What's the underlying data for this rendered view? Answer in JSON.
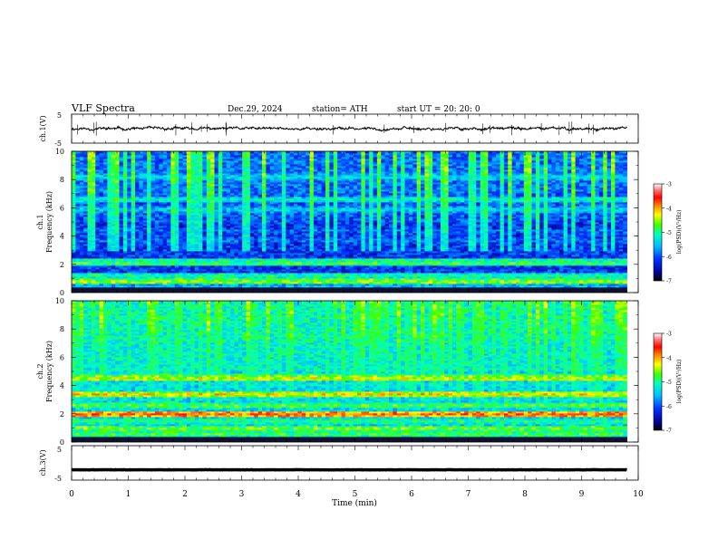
{
  "header": {
    "title": "VLF  Spectra",
    "date": "Dec.29, 2024",
    "station": "station= ATH",
    "start": "start  UT  =   20: 20: 0"
  },
  "chart_data": [
    {
      "type": "line",
      "ylabel": "ch.1(V)",
      "ylim": [
        -5,
        5
      ],
      "ytick_labels": [
        "5",
        "-5"
      ],
      "trace_level": 0,
      "trace_amplitude": 0.5
    },
    {
      "type": "heatmap",
      "ylabel": "ch.1",
      "ylabel2": "Frequency  (kHz)",
      "ylim": [
        0,
        10
      ],
      "ytick_labels": [
        "0",
        "2",
        "4",
        "6",
        "8",
        "10"
      ],
      "colorbar": {
        "label": "log(PSD)(V²/Hz)",
        "range": [
          -7,
          -3
        ],
        "tick_labels": [
          "-3",
          "-4",
          "-5",
          "-6",
          "-7"
        ]
      },
      "bands_khz": [
        {
          "f": 0.5,
          "level": -5.5
        },
        {
          "f": 0.8,
          "level": -4.5
        },
        {
          "f": 1.2,
          "level": -5.0
        },
        {
          "f": 2.1,
          "level": -4.8
        },
        {
          "f": 2.3,
          "level": -5.0
        },
        {
          "f": 3.7,
          "level": -5.9
        },
        {
          "f": 4.4,
          "level": -5.9
        },
        {
          "f": 5.9,
          "level": -5.4
        },
        {
          "f": 6.6,
          "level": -5.2
        },
        {
          "f": 8.2,
          "level": -5.3
        }
      ],
      "background_level": -6.2
    },
    {
      "type": "heatmap",
      "ylabel": "ch.2",
      "ylabel2": "Frequency  (kHz)",
      "ylim": [
        0,
        10
      ],
      "ytick_labels": [
        "0",
        "2",
        "4",
        "6",
        "8",
        "10"
      ],
      "colorbar": {
        "label": "log(PSD)(V²/Hz)",
        "range": [
          -7,
          -3
        ],
        "tick_labels": [
          "-3",
          "-4",
          "-5",
          "-6",
          "-7"
        ]
      },
      "bands_khz": [
        {
          "f": 0.6,
          "level": -4.8
        },
        {
          "f": 1.0,
          "level": -4.6
        },
        {
          "f": 1.5,
          "level": -4.9
        },
        {
          "f": 2.0,
          "level": -3.8
        },
        {
          "f": 2.6,
          "level": -4.7
        },
        {
          "f": 3.4,
          "level": -4.2
        },
        {
          "f": 4.5,
          "level": -4.3
        },
        {
          "f": 4.7,
          "level": -4.8
        },
        {
          "f": 5.2,
          "level": -5.6
        }
      ],
      "background_level": -5.4
    },
    {
      "type": "line",
      "ylabel": "ch.3(V)",
      "ylim": [
        -5,
        5
      ],
      "ytick_labels": [
        "5",
        "-5"
      ],
      "trace_level": -2,
      "trace_amplitude": 0.05
    }
  ],
  "x_axis": {
    "label": "Time  (min)",
    "range": [
      0,
      10
    ],
    "tick_labels": [
      "0",
      "1",
      "2",
      "3",
      "4",
      "5",
      "6",
      "7",
      "8",
      "9",
      "10"
    ],
    "data_end": 9.8
  }
}
